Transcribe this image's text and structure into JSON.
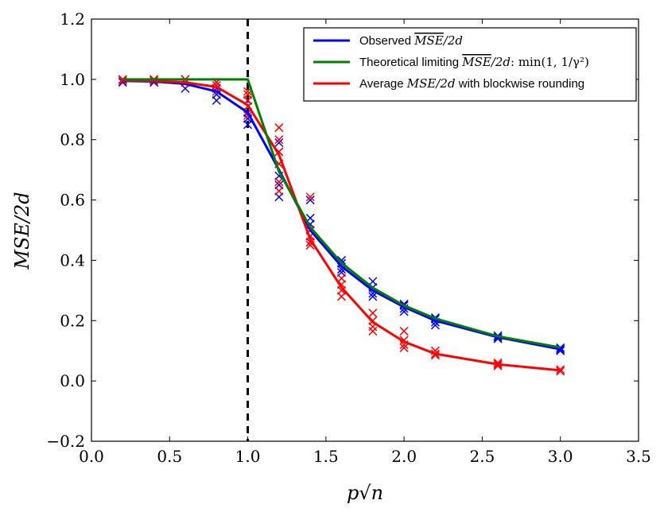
{
  "chart_data": {
    "type": "line",
    "xlabel": "p√n",
    "ylabel": "MSE/2d",
    "xlim": [
      0.0,
      3.5
    ],
    "ylim": [
      -0.2,
      1.2
    ],
    "xticks": [
      "0.0",
      "0.5",
      "1.0",
      "1.5",
      "2.0",
      "2.5",
      "3.0",
      "3.5"
    ],
    "yticks": [
      "−0.2",
      "0.0",
      "0.2",
      "0.4",
      "0.6",
      "0.8",
      "1.0",
      "1.2"
    ],
    "grid": false,
    "legend_position": "top-right",
    "vline": {
      "x": 1.0,
      "style": "dashed",
      "color": "#000000"
    },
    "x": [
      0.2,
      0.4,
      0.6,
      0.8,
      1.0,
      1.2,
      1.4,
      1.6,
      1.8,
      2.0,
      2.2,
      2.6,
      3.0
    ],
    "series": [
      {
        "name": "Observed MSE/2d",
        "legend_parts": [
          "Observed ",
          "MSE",
          "/2d",
          ""
        ],
        "color": "#0000ff",
        "values": [
          0.995,
          0.993,
          0.985,
          0.96,
          0.89,
          0.7,
          0.5,
          0.38,
          0.3,
          0.245,
          0.2,
          0.145,
          0.105
        ],
        "scatter": [
          [
            0.99,
            1.0
          ],
          [
            0.99,
            1.0
          ],
          [
            0.97,
            0.99,
            1.0
          ],
          [
            0.93,
            0.95,
            0.97,
            0.99
          ],
          [
            0.85,
            0.87,
            0.89,
            0.91,
            0.93
          ],
          [
            0.61,
            0.65,
            0.68,
            0.72,
            0.76,
            0.79
          ],
          [
            0.46,
            0.48,
            0.5,
            0.52,
            0.54,
            0.6
          ],
          [
            0.36,
            0.37,
            0.39,
            0.4
          ],
          [
            0.28,
            0.29,
            0.31,
            0.33
          ],
          [
            0.23,
            0.24,
            0.25,
            0.255
          ],
          [
            0.185,
            0.195,
            0.205,
            0.21
          ],
          [
            0.14,
            0.145,
            0.15
          ],
          [
            0.1,
            0.105,
            0.11
          ]
        ]
      },
      {
        "name": "Theoretical limiting MSE/2d: min(1,1/γ²)",
        "legend_parts": [
          "Theoretical limiting ",
          "MSE",
          "/2d",
          ": min(1, 1/γ²)"
        ],
        "color": "#007f00",
        "values": [
          1.0,
          1.0,
          1.0,
          1.0,
          1.0,
          0.694,
          0.51,
          0.391,
          0.309,
          0.25,
          0.207,
          0.148,
          0.111
        ],
        "scatter": []
      },
      {
        "name": "Average MSE/2d with blockwise rounding",
        "legend_parts": [
          "Average ",
          "MSE/2d",
          "",
          " with blockwise rounding"
        ],
        "color": "#ff0000",
        "values": [
          0.997,
          0.995,
          0.99,
          0.975,
          0.915,
          0.75,
          0.47,
          0.31,
          0.195,
          0.13,
          0.09,
          0.055,
          0.035
        ],
        "scatter": [
          [
            0.995,
            1.0
          ],
          [
            0.995,
            1.0
          ],
          [
            0.99,
            1.0
          ],
          [
            0.96,
            0.98,
            0.99
          ],
          [
            0.88,
            0.91,
            0.93,
            0.95,
            0.96
          ],
          [
            0.63,
            0.66,
            0.72,
            0.76,
            0.8,
            0.84
          ],
          [
            0.45,
            0.46,
            0.48,
            0.5,
            0.61
          ],
          [
            0.28,
            0.3,
            0.32,
            0.34
          ],
          [
            0.165,
            0.18,
            0.2,
            0.225
          ],
          [
            0.11,
            0.12,
            0.135,
            0.165
          ],
          [
            0.085,
            0.09,
            0.1
          ],
          [
            0.05,
            0.055,
            0.06
          ],
          [
            0.032,
            0.038
          ]
        ]
      }
    ]
  }
}
